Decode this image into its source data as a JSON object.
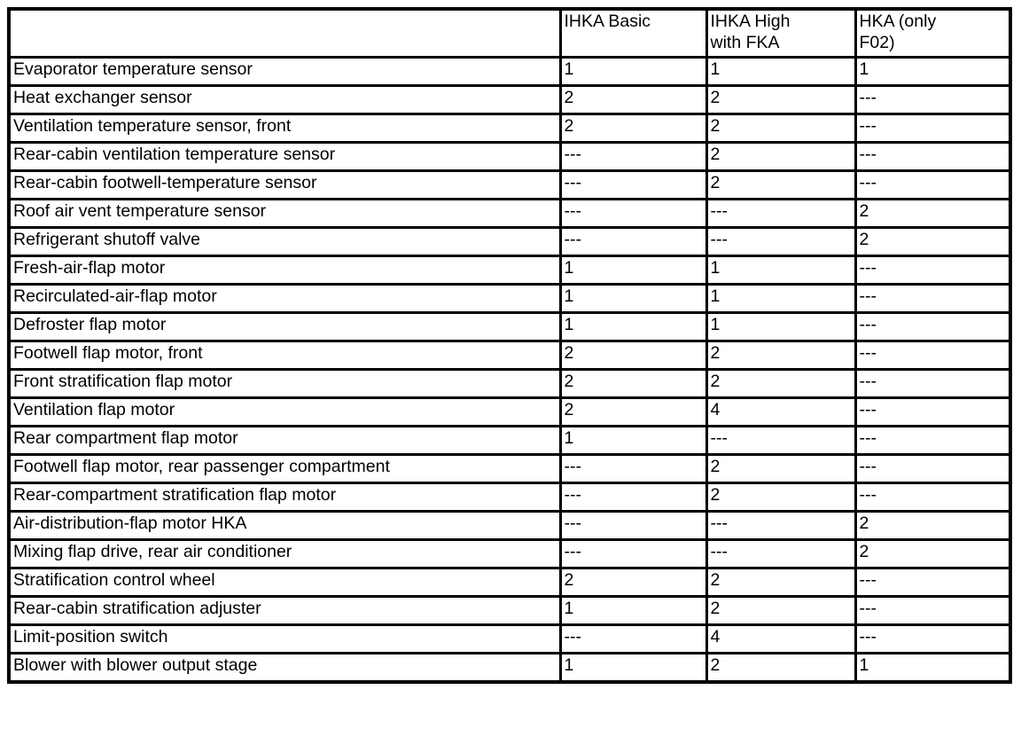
{
  "colors": {
    "text": "#000000",
    "border": "#000000",
    "background": "#ffffff"
  },
  "table": {
    "columns": [
      "",
      "IHKA Basic",
      "IHKA High\nwith FKA",
      "HKA (only\nF02)"
    ],
    "rows": [
      {
        "component": "Evaporator temperature sensor",
        "values": [
          "1",
          "1",
          "1"
        ]
      },
      {
        "component": "Heat exchanger sensor",
        "values": [
          "2",
          "2",
          "---"
        ]
      },
      {
        "component": "Ventilation temperature sensor, front",
        "values": [
          "2",
          "2",
          "---"
        ]
      },
      {
        "component": "Rear-cabin ventilation temperature sensor",
        "values": [
          "---",
          "2",
          "---"
        ]
      },
      {
        "component": "Rear-cabin footwell-temperature sensor",
        "values": [
          "---",
          "2",
          "---"
        ]
      },
      {
        "component": "Roof air vent temperature sensor",
        "values": [
          "---",
          "---",
          "2"
        ]
      },
      {
        "component": "Refrigerant shutoff valve",
        "values": [
          "---",
          "---",
          "2"
        ]
      },
      {
        "component": "Fresh-air-flap motor",
        "values": [
          "1",
          "1",
          "---"
        ]
      },
      {
        "component": "Recirculated-air-flap motor",
        "values": [
          "1",
          "1",
          "---"
        ]
      },
      {
        "component": "Defroster flap motor",
        "values": [
          "1",
          "1",
          "---"
        ]
      },
      {
        "component": "Footwell flap motor, front",
        "values": [
          "2",
          "2",
          "---"
        ]
      },
      {
        "component": "Front stratification flap motor",
        "values": [
          "2",
          "2",
          "---"
        ]
      },
      {
        "component": "Ventilation flap motor",
        "values": [
          "2",
          "4",
          "---"
        ]
      },
      {
        "component": "Rear compartment flap motor",
        "values": [
          "1",
          "---",
          "---"
        ]
      },
      {
        "component": "Footwell flap motor, rear passenger compartment",
        "values": [
          "---",
          "2",
          "---"
        ]
      },
      {
        "component": "Rear-compartment stratification flap motor",
        "values": [
          "---",
          "2",
          "---"
        ]
      },
      {
        "component": "Air-distribution-flap motor HKA",
        "values": [
          "---",
          "---",
          "2"
        ]
      },
      {
        "component": "Mixing flap drive, rear air conditioner",
        "values": [
          "---",
          "---",
          "2"
        ]
      },
      {
        "component": "Stratification control wheel",
        "values": [
          "2",
          "2",
          "---"
        ]
      },
      {
        "component": "Rear-cabin stratification adjuster",
        "values": [
          "1",
          "2",
          "---"
        ]
      },
      {
        "component": "Limit-position switch",
        "values": [
          "---",
          "4",
          "---"
        ]
      },
      {
        "component": "Blower with blower output stage",
        "values": [
          "1",
          "2",
          "1"
        ]
      }
    ]
  }
}
